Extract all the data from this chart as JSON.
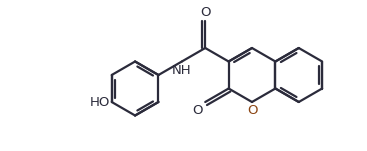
{
  "background_color": "#ffffff",
  "bond_color": "#2b2b3b",
  "oxygen_color": "#8b4513",
  "line_width": 1.6,
  "font_size": 9.5,
  "figsize": [
    3.67,
    1.51
  ],
  "dpi": 100,
  "xlim": [
    0,
    367
  ],
  "ylim": [
    0,
    151
  ]
}
